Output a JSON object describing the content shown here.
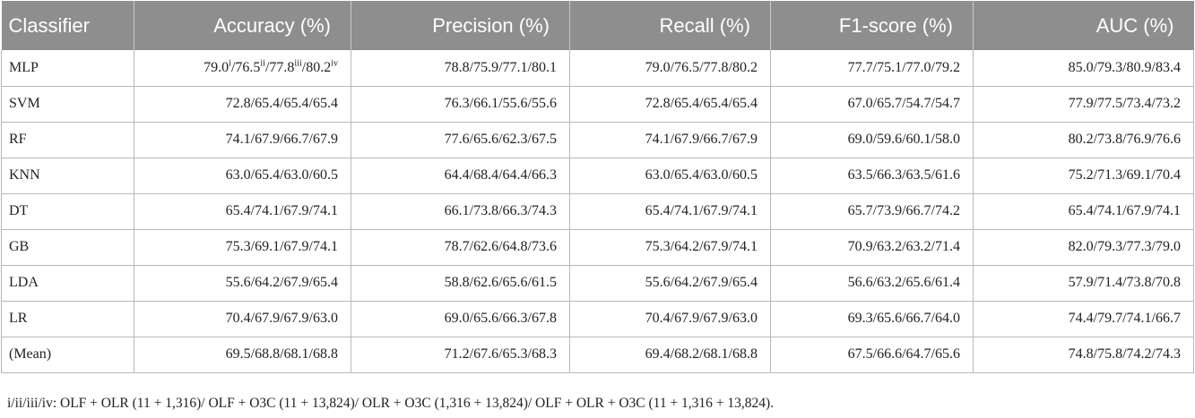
{
  "table": {
    "headers": [
      "Classifier",
      "Accuracy (%)",
      "Precision (%)",
      "Recall (%)",
      "F1-score (%)",
      "AUC (%)"
    ],
    "rows": [
      {
        "classifier": "MLP",
        "accuracy": {
          "v1": "79.0",
          "s1": "i",
          "v2": "/76.5",
          "s2": "ii",
          "v3": "/77.8",
          "s3": "iii",
          "v4": "/80.2",
          "s4": "iv"
        },
        "precision": "78.8/75.9/77.1/80.1",
        "recall": "79.0/76.5/77.8/80.2",
        "f1": "77.7/75.1/77.0/79.2",
        "auc": "85.0/79.3/80.9/83.4"
      },
      {
        "classifier": "SVM",
        "accuracy": "72.8/65.4/65.4/65.4",
        "precision": "76.3/66.1/55.6/55.6",
        "recall": "72.8/65.4/65.4/65.4",
        "f1": "67.0/65.7/54.7/54.7",
        "auc": "77.9/77.5/73.4/73.2"
      },
      {
        "classifier": "RF",
        "accuracy": "74.1/67.9/66.7/67.9",
        "precision": "77.6/65.6/62.3/67.5",
        "recall": "74.1/67.9/66.7/67.9",
        "f1": "69.0/59.6/60.1/58.0",
        "auc": "80.2/73.8/76.9/76.6"
      },
      {
        "classifier": "KNN",
        "accuracy": "63.0/65.4/63.0/60.5",
        "precision": "64.4/68.4/64.4/66.3",
        "recall": "63.0/65.4/63.0/60.5",
        "f1": "63.5/66.3/63.5/61.6",
        "auc": "75.2/71.3/69.1/70.4"
      },
      {
        "classifier": "DT",
        "accuracy": "65.4/74.1/67.9/74.1",
        "precision": "66.1/73.8/66.3/74.3",
        "recall": "65.4/74.1/67.9/74.1",
        "f1": "65.7/73.9/66.7/74.2",
        "auc": "65.4/74.1/67.9/74.1"
      },
      {
        "classifier": "GB",
        "accuracy": "75.3/69.1/67.9/74.1",
        "precision": "78.7/62.6/64.8/73.6",
        "recall": "75.3/64.2/67.9/74.1",
        "f1": "70.9/63.2/63.2/71.4",
        "auc": "82.0/79.3/77.3/79.0"
      },
      {
        "classifier": "LDA",
        "accuracy": "55.6/64.2/67.9/65.4",
        "precision": "58.8/62.6/65.6/61.5",
        "recall": "55.6/64.2/67.9/65.4",
        "f1": "56.6/63.2/65.6/61.4",
        "auc": "57.9/71.4/73.8/70.8"
      },
      {
        "classifier": "LR",
        "accuracy": "70.4/67.9/67.9/63.0",
        "precision": "69.0/65.6/66.3/67.8",
        "recall": "70.4/67.9/67.9/63.0",
        "f1": "69.3/65.6/66.7/64.0",
        "auc": "74.4/79.7/74.1/66.7"
      },
      {
        "classifier": "(Mean)",
        "accuracy": "69.5/68.8/68.1/68.8",
        "precision": "71.2/67.6/65.3/68.3",
        "recall": "69.4/68.2/68.1/68.8",
        "f1": "67.5/66.6/64.7/65.6",
        "auc": "74.8/75.8/74.2/74.3"
      }
    ]
  },
  "footnote": "i/ii/iii/iv: OLF + OLR (11 + 1,316)/ OLF + O3C (11 + 13,824)/ OLR + O3C (1,316 + 13,824)/ OLF + OLR + O3C (11 + 1,316 + 13,824).",
  "colors": {
    "header_bg": "#8e8e8e",
    "header_text": "#ffffff",
    "rule": "#b8b8b8"
  }
}
